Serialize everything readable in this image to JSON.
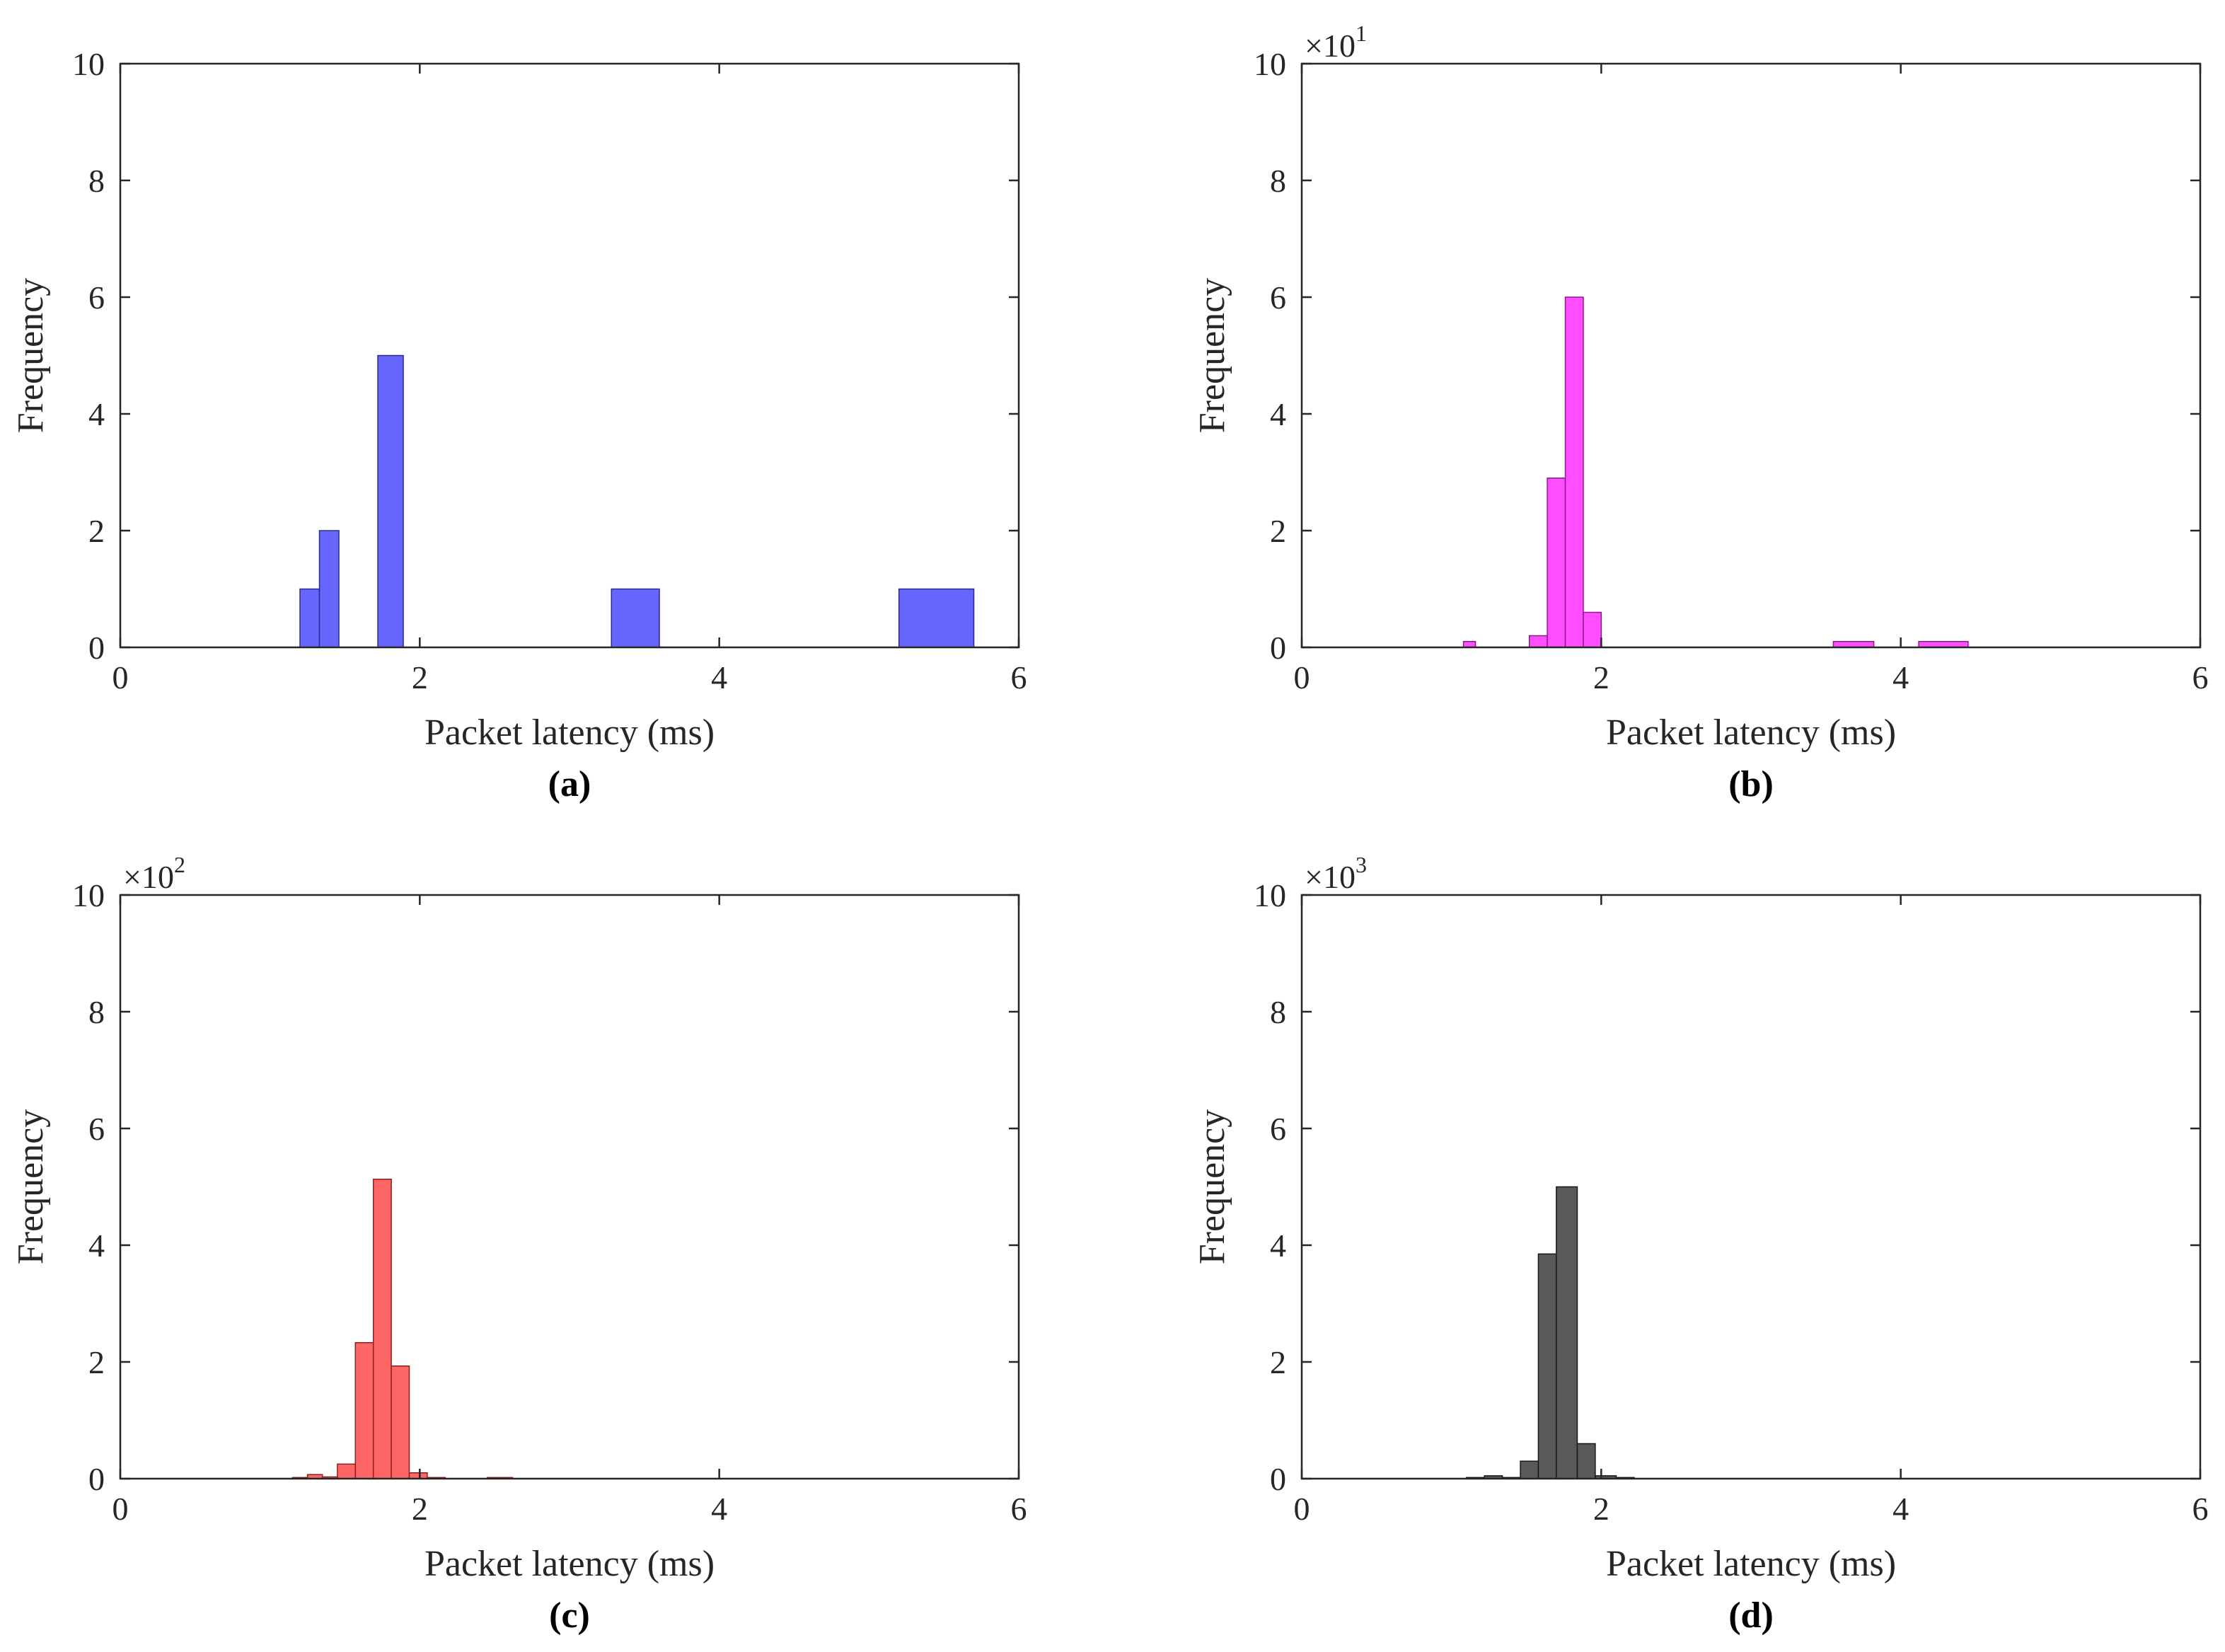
{
  "chart_data": [
    {
      "id": "a",
      "type": "bar",
      "caption": "(a)",
      "xlabel": "Packet latency (ms)",
      "ylabel": "Frequency",
      "xlim": [
        0,
        6
      ],
      "ylim": [
        0,
        10
      ],
      "xticks": [
        "0",
        "2",
        "4",
        "6"
      ],
      "yticks": [
        "0",
        "2",
        "4",
        "6",
        "8",
        "10"
      ],
      "exponent": null,
      "color": "#6666ff",
      "edge": "#2b2b8c",
      "bins": [
        {
          "x0": 1.2,
          "x1": 1.33,
          "value": 1
        },
        {
          "x0": 1.33,
          "x1": 1.46,
          "value": 2
        },
        {
          "x0": 1.72,
          "x1": 1.89,
          "value": 5
        },
        {
          "x0": 3.28,
          "x1": 3.6,
          "value": 1
        },
        {
          "x0": 5.2,
          "x1": 5.7,
          "value": 1
        }
      ]
    },
    {
      "id": "b",
      "type": "bar",
      "caption": "(b)",
      "xlabel": "Packet latency (ms)",
      "ylabel": "Frequency",
      "xlim": [
        0,
        6
      ],
      "ylim": [
        0,
        10
      ],
      "xticks": [
        "0",
        "2",
        "4",
        "6"
      ],
      "yticks": [
        "0",
        "2",
        "4",
        "6",
        "8",
        "10"
      ],
      "exponent": {
        "base": "×10",
        "power": "1"
      },
      "color": "#ff4dff",
      "edge": "#8c1a8c",
      "bins": [
        {
          "x0": 1.08,
          "x1": 1.16,
          "value": 0.1
        },
        {
          "x0": 1.52,
          "x1": 1.64,
          "value": 0.2
        },
        {
          "x0": 1.64,
          "x1": 1.76,
          "value": 2.9
        },
        {
          "x0": 1.76,
          "x1": 1.88,
          "value": 6.0
        },
        {
          "x0": 1.88,
          "x1": 2.0,
          "value": 0.6
        },
        {
          "x0": 3.55,
          "x1": 3.82,
          "value": 0.1
        },
        {
          "x0": 4.12,
          "x1": 4.45,
          "value": 0.1
        }
      ]
    },
    {
      "id": "c",
      "type": "bar",
      "caption": "(c)",
      "xlabel": "Packet latency (ms)",
      "ylabel": "Frequency",
      "xlim": [
        0,
        6
      ],
      "ylim": [
        0,
        10
      ],
      "xticks": [
        "0",
        "2",
        "4",
        "6"
      ],
      "yticks": [
        "0",
        "2",
        "4",
        "6",
        "8",
        "10"
      ],
      "exponent": {
        "base": "×10",
        "power": "2"
      },
      "color": "#ff6666",
      "edge": "#8c2020",
      "bins": [
        {
          "x0": 1.15,
          "x1": 1.25,
          "value": 0.02
        },
        {
          "x0": 1.25,
          "x1": 1.35,
          "value": 0.07
        },
        {
          "x0": 1.35,
          "x1": 1.45,
          "value": 0.03
        },
        {
          "x0": 1.45,
          "x1": 1.57,
          "value": 0.25
        },
        {
          "x0": 1.57,
          "x1": 1.69,
          "value": 2.33
        },
        {
          "x0": 1.69,
          "x1": 1.81,
          "value": 5.13
        },
        {
          "x0": 1.81,
          "x1": 1.93,
          "value": 1.93
        },
        {
          "x0": 1.93,
          "x1": 2.05,
          "value": 0.1
        },
        {
          "x0": 2.05,
          "x1": 2.17,
          "value": 0.02
        },
        {
          "x0": 2.45,
          "x1": 2.62,
          "value": 0.02
        }
      ]
    },
    {
      "id": "d",
      "type": "bar",
      "caption": "(d)",
      "xlabel": "Packet latency (ms)",
      "ylabel": "Frequency",
      "xlim": [
        0,
        6
      ],
      "ylim": [
        0,
        10
      ],
      "xticks": [
        "0",
        "2",
        "4",
        "6"
      ],
      "yticks": [
        "0",
        "2",
        "4",
        "6",
        "8",
        "10"
      ],
      "exponent": {
        "base": "×10",
        "power": "3"
      },
      "color": "#595959",
      "edge": "#1a1a1a",
      "bins": [
        {
          "x0": 1.1,
          "x1": 1.22,
          "value": 0.02
        },
        {
          "x0": 1.22,
          "x1": 1.34,
          "value": 0.05
        },
        {
          "x0": 1.34,
          "x1": 1.46,
          "value": 0.02
        },
        {
          "x0": 1.46,
          "x1": 1.58,
          "value": 0.3
        },
        {
          "x0": 1.58,
          "x1": 1.7,
          "value": 3.85
        },
        {
          "x0": 1.7,
          "x1": 1.84,
          "value": 5.0
        },
        {
          "x0": 1.84,
          "x1": 1.96,
          "value": 0.6
        },
        {
          "x0": 1.96,
          "x1": 2.1,
          "value": 0.05
        },
        {
          "x0": 2.1,
          "x1": 2.22,
          "value": 0.02
        }
      ]
    }
  ]
}
